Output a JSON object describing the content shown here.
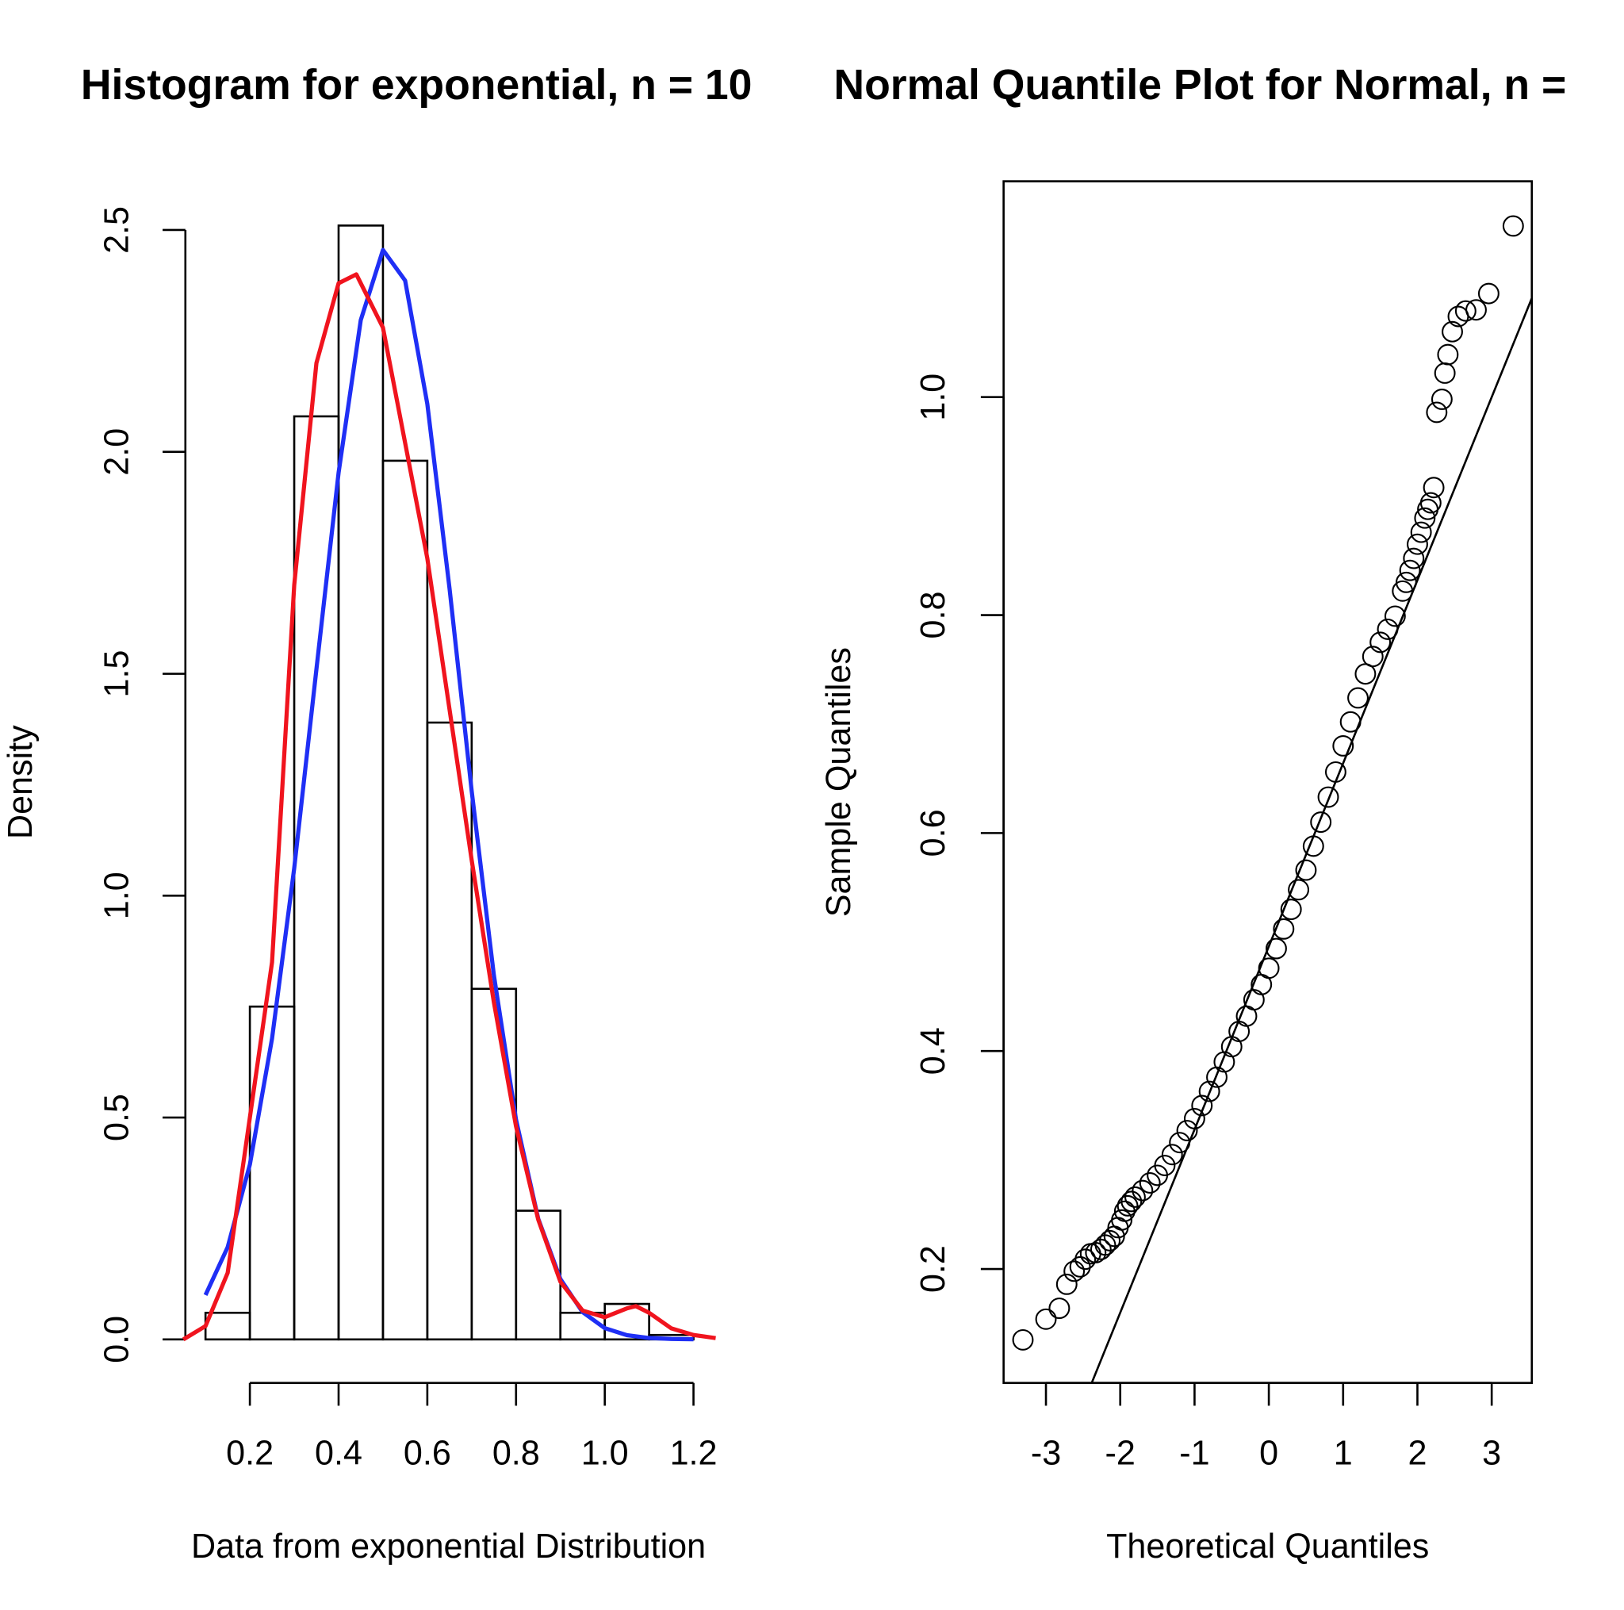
{
  "chart_data": [
    {
      "type": "histogram",
      "title": "Histogram for exponential, n = 10",
      "x_label": "Data from exponential Distribution",
      "y_label": "Density",
      "bins": [
        0.1,
        0.2,
        0.3,
        0.4,
        0.5,
        0.6,
        0.7,
        0.8,
        0.9,
        1.0,
        1.1,
        1.2
      ],
      "values": [
        0.06,
        0.75,
        2.08,
        2.51,
        1.98,
        1.39,
        0.79,
        0.29,
        0.06,
        0.08,
        0.01
      ],
      "series": [
        {
          "color": "#1f2ff5",
          "x": [
            0.1,
            0.15,
            0.2,
            0.25,
            0.3,
            0.35,
            0.4,
            0.45,
            0.5,
            0.55,
            0.6,
            0.65,
            0.7,
            0.75,
            0.8,
            0.85,
            0.9,
            0.95,
            1.0,
            1.05,
            1.1,
            1.15,
            1.2
          ],
          "values": [
            0.1,
            0.208,
            0.394,
            0.678,
            1.062,
            1.51,
            1.953,
            2.297,
            2.455,
            2.386,
            2.108,
            1.693,
            1.236,
            0.821,
            0.495,
            0.272,
            0.136,
            0.0615,
            0.0254,
            0.0095,
            0.0032,
            0.001,
            0.0003
          ]
        },
        {
          "color": "#f0141e",
          "x": [
            0.05,
            0.1,
            0.15,
            0.2,
            0.25,
            0.3,
            0.35,
            0.4,
            0.44,
            0.5,
            0.55,
            0.6,
            0.65,
            0.7,
            0.75,
            0.8,
            0.85,
            0.9,
            0.95,
            1.0,
            1.05,
            1.07,
            1.1,
            1.15,
            1.2,
            1.25
          ],
          "values": [
            0.0,
            0.03,
            0.15,
            0.5,
            0.85,
            1.7,
            2.2,
            2.38,
            2.4,
            2.28,
            2.02,
            1.76,
            1.42,
            1.08,
            0.76,
            0.48,
            0.27,
            0.13,
            0.065,
            0.05,
            0.07,
            0.075,
            0.06,
            0.025,
            0.01,
            0.003
          ]
        }
      ],
      "xlim": [
        0.05,
        1.25
      ],
      "ylim": [
        0,
        2.5
      ],
      "xticks": [
        0.2,
        0.4,
        0.6,
        0.8,
        {
          "value": 1.0,
          "label": "1.0"
        },
        1.2
      ],
      "yticks": [
        {
          "value": 0,
          "label": "0.0"
        },
        0.5,
        {
          "value": 1.0,
          "label": "1.0"
        },
        1.5,
        {
          "value": 2.0,
          "label": "2.0"
        },
        2.5
      ],
      "bar_color": "#000000"
    },
    {
      "type": "scatter",
      "title": "Normal Quantile Plot for Normal, n =",
      "x_label": "Theoretical Quantiles",
      "y_label": "Sample Quantiles",
      "x": [
        -3.31,
        -3.0,
        -2.82,
        -2.72,
        -2.62,
        -2.54,
        -2.47,
        -2.4,
        -2.33,
        -2.26,
        -2.2,
        -2.14,
        -2.08,
        -2.03,
        -1.98,
        -1.94,
        -1.9,
        -1.85,
        -1.8,
        -1.7,
        -1.6,
        -1.5,
        -1.4,
        -1.3,
        -1.2,
        -1.1,
        -1.0,
        -0.9,
        -0.8,
        -0.7,
        -0.6,
        -0.5,
        -0.4,
        -0.3,
        -0.2,
        -0.1,
        0,
        0.1,
        0.2,
        0.3,
        0.4,
        0.5,
        0.6,
        0.7,
        0.8,
        0.9,
        1.0,
        1.1,
        1.2,
        1.3,
        1.4,
        1.5,
        1.6,
        1.7,
        1.8,
        1.85,
        1.9,
        1.95,
        2.0,
        2.05,
        2.1,
        2.14,
        2.18,
        2.22,
        2.26,
        2.33,
        2.37,
        2.41,
        2.47,
        2.55,
        2.65,
        2.79,
        2.96,
        3.29
      ],
      "values": [
        0.135,
        0.154,
        0.164,
        0.186,
        0.198,
        0.202,
        0.209,
        0.214,
        0.215,
        0.218,
        0.222,
        0.226,
        0.23,
        0.238,
        0.245,
        0.253,
        0.258,
        0.262,
        0.266,
        0.272,
        0.279,
        0.286,
        0.295,
        0.305,
        0.316,
        0.327,
        0.338,
        0.35,
        0.363,
        0.376,
        0.39,
        0.404,
        0.418,
        0.432,
        0.447,
        0.461,
        0.476,
        0.494,
        0.512,
        0.53,
        0.548,
        0.566,
        0.588,
        0.61,
        0.633,
        0.656,
        0.68,
        0.702,
        0.724,
        0.746,
        0.762,
        0.775,
        0.787,
        0.799,
        0.822,
        0.83,
        0.841,
        0.852,
        0.865,
        0.876,
        0.889,
        0.897,
        0.903,
        0.917,
        0.986,
        0.998,
        1.022,
        1.039,
        1.06,
        1.074,
        1.079,
        1.08,
        1.095,
        1.157
      ],
      "reference_line": {
        "intercept": 0.496,
        "slope": 0.168
      },
      "color": "#000000",
      "xlim": [
        -3.57,
        3.54
      ],
      "ylim": [
        0.0955,
        1.198
      ],
      "xticks": [
        -3,
        -2,
        -1,
        0,
        1,
        2,
        3
      ],
      "yticks": [
        0.2,
        0.4,
        0.6,
        0.8,
        {
          "value": 1.0,
          "label": "1.0"
        }
      ]
    }
  ]
}
